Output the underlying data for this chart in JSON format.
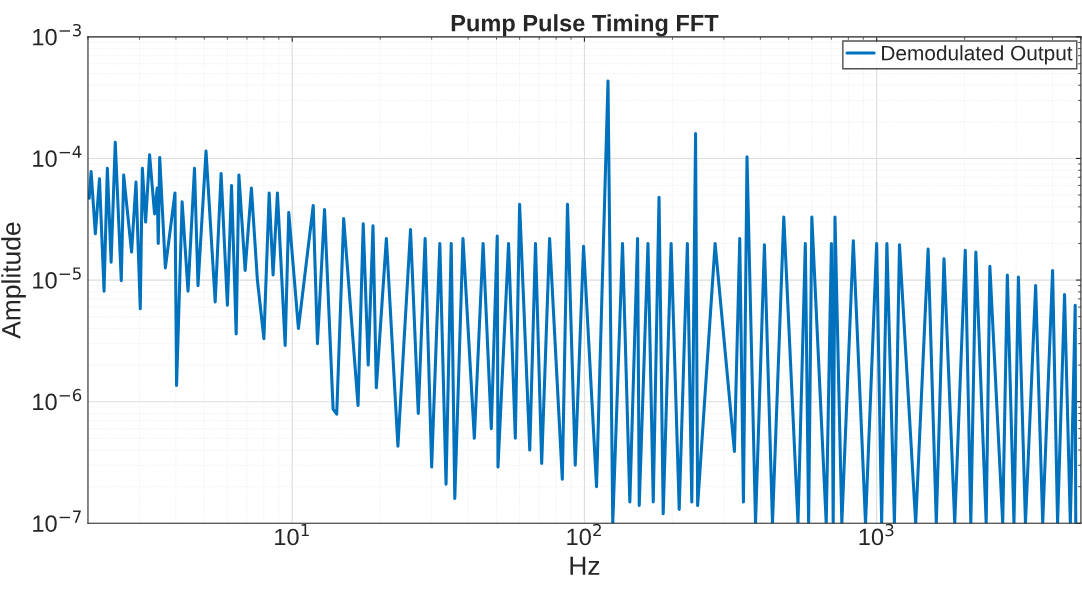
{
  "chart_data": {
    "type": "line",
    "title": "Pump Pulse Timing FFT",
    "xlabel": "Hz",
    "ylabel": "Amplitude",
    "log": "xy",
    "grid": true,
    "legend": "top right",
    "line_style": "solid",
    "marker": "none",
    "xlim": [
      2,
      5000
    ],
    "xticks": [
      {
        "value": 10,
        "label": "10$^{1}$"
      },
      {
        "value": 100,
        "label": "10$^{2}$"
      },
      {
        "value": 1000,
        "label": "10$^{3}$"
      }
    ],
    "ylim": [
      1e-07,
      0.001
    ],
    "yticks": [
      {
        "value": 1e-07,
        "label": "10$^{−7}$"
      },
      {
        "value": 1e-06,
        "label": "10$^{−6}$"
      },
      {
        "value": 1e-05,
        "label": "10$^{−5}$"
      },
      {
        "value": 0.0001,
        "label": "10$^{−4}$"
      },
      {
        "value": 0.001,
        "label": "10$^{−3}$"
      }
    ],
    "series": [
      {
        "name": "Demodulated Output",
        "color": "#0072bd",
        "x": [
          2.02,
          2.05,
          2.12,
          2.19,
          2.27,
          2.33,
          2.4,
          2.48,
          2.6,
          2.65,
          2.82,
          2.92,
          3.02,
          3.07,
          3.15,
          3.25,
          3.38,
          3.45,
          3.48,
          3.52,
          3.68,
          3.97,
          4.02,
          4.2,
          4.4,
          4.63,
          4.76,
          5.07,
          5.45,
          5.71,
          6.0,
          6.2,
          6.43,
          6.57,
          6.9,
          7.25,
          7.6,
          8.0,
          8.34,
          8.6,
          8.9,
          9.46,
          9.73,
          10.5,
          11.8,
          12.2,
          12.9,
          13.8,
          14.2,
          15.0,
          16.8,
          17.5,
          18.2,
          18.9,
          19.4,
          21,
          23,
          25.4,
          27,
          28.5,
          30,
          32,
          33.6,
          35,
          36,
          38.4,
          42,
          45,
          48,
          50.3,
          50.6,
          55,
          58,
          60,
          65,
          68,
          71.4,
          76,
          84,
          87.5,
          93,
          99.3,
          110,
          120.4,
          125,
          135,
          143,
          152,
          154,
          165,
          172,
          180,
          186,
          198,
          211,
          225,
          233,
          240,
          244,
          280,
          326,
          340,
          350,
          360,
          385,
          413,
          440,
          481,
          538,
          570,
          585,
          600,
          672,
          700,
          710,
          720,
          760,
          832,
          916,
          1000,
          1040,
          1084,
          1150,
          1197,
          1360,
          1500,
          1600,
          1700,
          1850,
          2010,
          2100,
          2185,
          2370,
          2440,
          2700,
          2800,
          2950,
          3055,
          3230,
          3500,
          3700,
          4000,
          4160,
          4395,
          4600,
          4780,
          4800
        ],
        "values": [
          4.7e-05,
          7.8e-05,
          2.4e-05,
          6.8e-05,
          8.1e-06,
          8.3e-05,
          1.4e-05,
          0.000136,
          9.9e-06,
          7.3e-05,
          1.7e-05,
          6.4e-05,
          5.8e-06,
          8.3e-05,
          3e-05,
          0.000107,
          3.5e-05,
          5.7e-05,
          2e-05,
          0.000102,
          1.26e-05,
          5.2e-05,
          1.36e-06,
          4.4e-05,
          8.1e-06,
          8.3e-05,
          9e-06,
          0.000115,
          6.6e-06,
          7.5e-05,
          6.2e-06,
          6e-05,
          3.6e-06,
          7.3e-05,
          1.2e-05,
          5.7e-05,
          1e-05,
          3.3e-06,
          5.2e-05,
          1.1e-05,
          5.2e-05,
          2.9e-06,
          3.6e-05,
          4e-06,
          4.1e-05,
          3e-06,
          3.8e-05,
          8.7e-07,
          7.9e-07,
          3.2e-05,
          9.3e-07,
          2.9e-05,
          2e-06,
          2.8e-05,
          1.3e-06,
          2.2e-05,
          4.3e-07,
          2.6e-05,
          8e-07,
          2.2e-05,
          2.9e-07,
          2e-05,
          2.1e-07,
          2e-05,
          1.6e-07,
          2.2e-05,
          5e-07,
          2e-05,
          6e-07,
          2.3e-05,
          2.9e-07,
          2e-05,
          5e-07,
          4.2e-05,
          4e-07,
          2e-05,
          3.1e-07,
          2.2e-05,
          2.3e-07,
          4.2e-05,
          3e-07,
          1.9e-05,
          2e-07,
          0.000433,
          1e-07,
          2e-05,
          1.5e-07,
          2.2e-05,
          1.4e-07,
          2e-05,
          1.5e-07,
          4.8e-05,
          1.2e-07,
          2e-05,
          1.3e-07,
          2e-05,
          1.5e-07,
          0.00016,
          1.4e-07,
          2e-05,
          3.9e-07,
          2.2e-05,
          1.5e-07,
          0.000103,
          1e-07,
          1.95e-05,
          1e-07,
          3.3e-05,
          1e-07,
          2e-05,
          1e-07,
          3.3e-05,
          1e-07,
          2e-05,
          1e-07,
          3.3e-05,
          1e-07,
          2.1e-05,
          1e-07,
          2e-05,
          1e-07,
          2e-05,
          1e-07,
          1.95e-05,
          1e-07,
          1.8e-05,
          1e-07,
          1.5e-05,
          1e-07,
          1.76e-05,
          1e-07,
          1.7e-05,
          1e-07,
          1.3e-05,
          1e-07,
          1.1e-05,
          1e-07,
          1.06e-05,
          1e-07,
          9e-06,
          1e-07,
          1.2e-05,
          1e-07,
          7.6e-06,
          1e-07,
          6.2e-06,
          1e-07
        ]
      }
    ]
  }
}
